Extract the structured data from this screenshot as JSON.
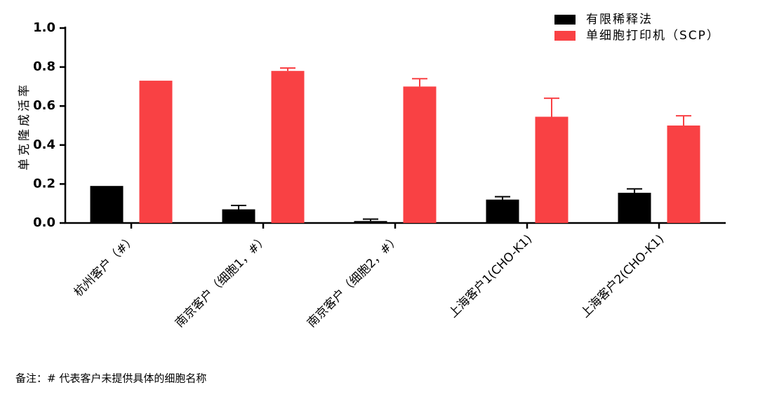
{
  "chart_data": {
    "type": "bar",
    "ylabel": "单克隆成活率",
    "categories": [
      "杭州客户（#）",
      "南京客户（细胞1，#）",
      "南京客户（细胞2，#）",
      "上海客户1(CHO-K1)",
      "上海客户2(CHO-K1)"
    ],
    "series": [
      {
        "name": "有限稀释法",
        "color": "#000000",
        "values": [
          0.19,
          0.07,
          0.01,
          0.12,
          0.155
        ],
        "errors": [
          null,
          0.02,
          0.01,
          0.015,
          0.02
        ]
      },
      {
        "name": "单细胞打印机（SCP）",
        "color": "#f94144",
        "values": [
          0.73,
          0.78,
          0.7,
          0.545,
          0.5
        ],
        "errors": [
          null,
          0.015,
          0.04,
          0.095,
          0.05
        ]
      }
    ],
    "ylim": [
      0,
      1
    ],
    "yticks": [
      {
        "value": 0,
        "label": "0.0"
      },
      0.2,
      0.4,
      0.6,
      0.8,
      {
        "value": 1,
        "label": "1.0"
      }
    ],
    "legend": "top-right",
    "footnote": "备注：# 代表客户未提供具体的细胞名称"
  }
}
